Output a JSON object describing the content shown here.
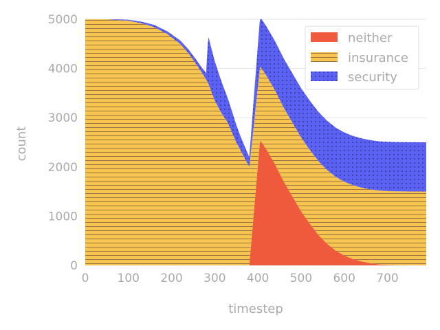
{
  "chart_data": {
    "type": "area",
    "xlabel": "timestep",
    "ylabel": "count",
    "xlim": [
      0,
      790
    ],
    "ylim": [
      0,
      5000
    ],
    "x_ticks": [
      "0",
      "100",
      "200",
      "300",
      "400",
      "500",
      "600",
      "700"
    ],
    "y_ticks": [
      "0",
      "1000",
      "2000",
      "3000",
      "4000",
      "5000"
    ],
    "grid": "horizontal",
    "legend_position": "top-right",
    "series": [
      {
        "name": "neither",
        "color": "#f05a3c",
        "x": [
          0,
          330,
          350,
          380,
          405,
          420,
          440,
          460,
          480,
          500,
          520,
          540,
          560,
          580,
          600,
          620,
          640,
          660,
          680,
          700,
          720,
          750,
          790
        ],
        "values": [
          0,
          0,
          0,
          0,
          2550,
          2350,
          2050,
          1700,
          1400,
          1100,
          850,
          620,
          440,
          300,
          200,
          130,
          80,
          45,
          20,
          10,
          5,
          2,
          0
        ]
      },
      {
        "name": "insurance",
        "color": "#f8c450",
        "x": [
          0,
          50,
          100,
          130,
          160,
          190,
          220,
          240,
          260,
          275,
          285,
          300,
          315,
          330,
          350,
          380,
          405
        ],
        "values": [
          5000,
          5000,
          4970,
          4920,
          4840,
          4700,
          4500,
          4300,
          4050,
          3850,
          3700,
          3350,
          3100,
          2900,
          2500,
          2000,
          1500
        ]
      },
      {
        "name": "security",
        "color": "#5b61f3",
        "x": [
          0,
          50,
          100,
          150,
          200,
          240,
          270,
          280,
          285,
          290,
          300,
          310,
          320,
          330,
          340,
          360,
          380,
          405
        ],
        "values": [
          0,
          5,
          20,
          40,
          60,
          80,
          100,
          130,
          970,
          900,
          800,
          700,
          600,
          500,
          430,
          280,
          200,
          1000
        ]
      }
    ]
  }
}
